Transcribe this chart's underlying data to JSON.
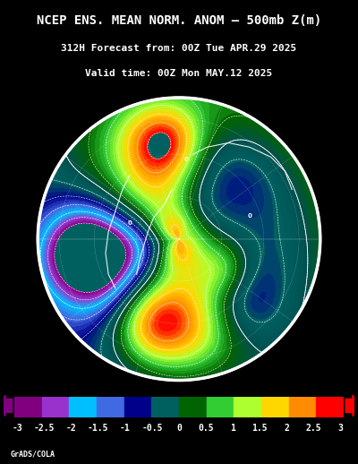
{
  "title_line1": "NCEP ENS. MEAN NORM. ANOM – 500mb Z(m)",
  "title_line2": "312H Forecast from: 00Z Tue APR.29 2025",
  "title_line3": "Valid time: 00Z Mon MAY.12 2025",
  "footer": "GrADS/COLA",
  "background_color": "#000000",
  "map_bg_color": "#006060",
  "colorbar_colors": [
    "#8B008B",
    "#9400D3",
    "#8A2BE2",
    "#00BFFF",
    "#1E90FF",
    "#0000CD",
    "#008080",
    "#006400",
    "#228B22",
    "#32CD32",
    "#ADFF2F",
    "#FFD700",
    "#FFA500",
    "#FF8C00",
    "#FF4500",
    "#FF0000"
  ],
  "colorbar_ticks": [
    -3,
    -2.5,
    -2,
    -1.5,
    -1,
    -0.5,
    0,
    0.5,
    1,
    1.5,
    2,
    2.5,
    3
  ],
  "colorbar_colors_simple": [
    "#800080",
    "#9932CC",
    "#00CED1",
    "#4169E1",
    "#00008B",
    "#006060",
    "#008000",
    "#7CFC00",
    "#FFD700",
    "#FF8C00",
    "#FF0000"
  ],
  "cbar_left_arrow_color": "#800080",
  "cbar_right_arrow_color": "#FF0000",
  "title_color": "#FFFFFF",
  "tick_label_color": "#FFFFFF"
}
